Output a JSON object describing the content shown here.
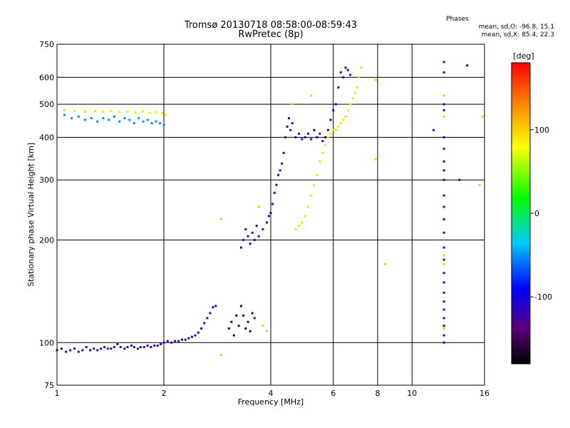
{
  "chart_data": {
    "type": "scatter",
    "title": "Tromsø 20130718 08:58:00-08:59:43",
    "subtitle": "RwPretec (8p)",
    "xlabel": "Frequency [MHz]",
    "ylabel": "Stationary phase Virtual Height [km]",
    "xscale": "log",
    "yscale": "log",
    "xlim": [
      1,
      16
    ],
    "ylim": [
      75,
      750
    ],
    "x_ticks": [
      1,
      2,
      4,
      6,
      8,
      10,
      16
    ],
    "y_ticks": [
      75,
      100,
      200,
      300,
      400,
      500,
      600,
      750
    ],
    "grid": true,
    "phases_title": "Phases",
    "stats": {
      "o": "mean, sd,O: -96.8, 15.1",
      "x": "mean, sd,X:  85.4, 22.3"
    },
    "colorbar": {
      "label": "[deg]",
      "range": [
        -180,
        180
      ],
      "ticks": [
        100,
        0,
        -100
      ],
      "colors": [
        "#000000",
        "#5a0080",
        "#0000ff",
        "#00c8ff",
        "#00ff00",
        "#ffff00",
        "#ff8800",
        "#ff0000"
      ]
    },
    "series": [
      {
        "color_phase": -110,
        "points": [
          [
            1.0,
            95
          ],
          [
            1.03,
            96
          ],
          [
            1.06,
            94
          ],
          [
            1.09,
            95
          ],
          [
            1.12,
            96
          ],
          [
            1.15,
            94
          ],
          [
            1.18,
            95
          ],
          [
            1.21,
            97
          ],
          [
            1.24,
            95
          ],
          [
            1.27,
            96
          ],
          [
            1.3,
            95
          ],
          [
            1.33,
            96
          ],
          [
            1.36,
            97
          ],
          [
            1.39,
            96
          ],
          [
            1.42,
            96
          ],
          [
            1.45,
            97
          ],
          [
            1.48,
            99
          ],
          [
            1.51,
            97
          ],
          [
            1.55,
            96
          ],
          [
            1.58,
            97
          ],
          [
            1.62,
            98
          ],
          [
            1.65,
            97
          ],
          [
            1.69,
            96
          ],
          [
            1.72,
            97
          ],
          [
            1.76,
            97
          ],
          [
            1.8,
            98
          ],
          [
            1.84,
            97
          ],
          [
            1.88,
            98
          ],
          [
            1.92,
            98
          ],
          [
            1.96,
            99
          ],
          [
            2.0,
            100
          ],
          [
            2.05,
            101
          ],
          [
            2.1,
            100
          ],
          [
            2.15,
            101
          ],
          [
            2.2,
            101
          ],
          [
            2.25,
            102
          ],
          [
            2.3,
            102
          ],
          [
            2.35,
            103
          ],
          [
            2.4,
            104
          ],
          [
            2.45,
            105
          ],
          [
            2.5,
            107
          ],
          [
            2.55,
            110
          ],
          [
            2.6,
            114
          ],
          [
            2.65,
            118
          ],
          [
            2.7,
            122
          ],
          [
            2.75,
            127
          ],
          [
            2.8,
            128
          ]
        ]
      },
      {
        "color_phase": -110,
        "points": [
          [
            3.3,
            190
          ],
          [
            3.35,
            200
          ],
          [
            3.4,
            215
          ],
          [
            3.45,
            205
          ],
          [
            3.5,
            195
          ],
          [
            3.55,
            210
          ],
          [
            3.6,
            200
          ],
          [
            3.65,
            220
          ],
          [
            3.7,
            205
          ],
          [
            3.8,
            215
          ],
          [
            3.9,
            225
          ],
          [
            3.95,
            235
          ],
          [
            4.0,
            240
          ],
          [
            4.05,
            255
          ],
          [
            4.1,
            275
          ],
          [
            4.15,
            290
          ],
          [
            4.2,
            310
          ],
          [
            4.25,
            320
          ],
          [
            4.3,
            335
          ],
          [
            4.35,
            360
          ],
          [
            4.4,
            400
          ],
          [
            4.45,
            430
          ],
          [
            4.5,
            455
          ],
          [
            4.55,
            420
          ],
          [
            4.6,
            440
          ],
          [
            4.7,
            400
          ],
          [
            4.8,
            410
          ],
          [
            4.9,
            395
          ],
          [
            5.0,
            400
          ],
          [
            5.1,
            410
          ],
          [
            5.2,
            395
          ],
          [
            5.3,
            420
          ],
          [
            5.4,
            400
          ],
          [
            5.5,
            410
          ],
          [
            5.6,
            390
          ],
          [
            5.7,
            400
          ],
          [
            5.8,
            420
          ],
          [
            5.9,
            450
          ],
          [
            6.0,
            480
          ],
          [
            6.1,
            500
          ],
          [
            6.2,
            560
          ],
          [
            6.3,
            620
          ],
          [
            6.4,
            600
          ],
          [
            6.5,
            640
          ],
          [
            6.6,
            630
          ],
          [
            6.7,
            610
          ]
        ]
      },
      {
        "color_phase": -40,
        "points": [
          [
            1.05,
            465
          ],
          [
            1.1,
            455
          ],
          [
            1.15,
            460
          ],
          [
            1.2,
            450
          ],
          [
            1.25,
            455
          ],
          [
            1.3,
            445
          ],
          [
            1.35,
            455
          ],
          [
            1.4,
            450
          ],
          [
            1.45,
            460
          ],
          [
            1.5,
            445
          ],
          [
            1.55,
            455
          ],
          [
            1.6,
            450
          ],
          [
            1.65,
            440
          ],
          [
            1.7,
            455
          ],
          [
            1.75,
            445
          ],
          [
            1.8,
            450
          ],
          [
            1.85,
            440
          ],
          [
            1.9,
            445
          ],
          [
            1.95,
            440
          ],
          [
            2.0,
            435
          ]
        ]
      },
      {
        "color_phase": 90,
        "points": [
          [
            1.05,
            480
          ],
          [
            1.12,
            478
          ],
          [
            1.2,
            475
          ],
          [
            1.28,
            478
          ],
          [
            1.35,
            475
          ],
          [
            1.42,
            478
          ],
          [
            1.5,
            474
          ],
          [
            1.58,
            476
          ],
          [
            1.66,
            473
          ],
          [
            1.74,
            476
          ],
          [
            1.82,
            472
          ],
          [
            1.9,
            474
          ],
          [
            1.98,
            470
          ],
          [
            2.02,
            465
          ],
          [
            4.7,
            215
          ],
          [
            4.8,
            220
          ],
          [
            4.9,
            225
          ],
          [
            5.0,
            235
          ],
          [
            5.1,
            250
          ],
          [
            5.2,
            270
          ],
          [
            5.3,
            290
          ],
          [
            5.4,
            310
          ],
          [
            5.5,
            340
          ],
          [
            5.6,
            360
          ],
          [
            5.7,
            380
          ],
          [
            5.8,
            400
          ],
          [
            5.9,
            410
          ],
          [
            6.0,
            420
          ],
          [
            6.1,
            420
          ],
          [
            6.2,
            430
          ],
          [
            6.3,
            440
          ],
          [
            6.4,
            450
          ],
          [
            6.5,
            460
          ],
          [
            6.6,
            480
          ],
          [
            6.7,
            500
          ],
          [
            6.8,
            520
          ],
          [
            6.9,
            540
          ],
          [
            7.0,
            560
          ],
          [
            7.1,
            600
          ],
          [
            7.2,
            640
          ]
        ]
      },
      {
        "color_phase": -150,
        "points": [
          [
            3.05,
            110
          ],
          [
            3.1,
            115
          ],
          [
            3.15,
            105
          ],
          [
            3.2,
            120
          ],
          [
            3.25,
            112
          ],
          [
            3.3,
            128
          ],
          [
            3.35,
            120
          ],
          [
            3.4,
            110
          ],
          [
            3.45,
            115
          ],
          [
            3.5,
            108
          ],
          [
            3.55,
            122
          ],
          [
            3.6,
            118
          ]
        ]
      },
      {
        "color_phase": -110,
        "points": [
          [
            12.3,
            665
          ],
          [
            12.3,
            620
          ],
          [
            12.3,
            500
          ],
          [
            12.3,
            480
          ],
          [
            12.3,
            400
          ],
          [
            12.3,
            370
          ],
          [
            12.3,
            340
          ],
          [
            12.3,
            320
          ],
          [
            12.3,
            300
          ],
          [
            12.3,
            270
          ],
          [
            12.3,
            250
          ],
          [
            12.3,
            230
          ],
          [
            12.3,
            210
          ],
          [
            12.3,
            190
          ],
          [
            12.3,
            175
          ],
          [
            12.3,
            160
          ],
          [
            12.3,
            150
          ],
          [
            12.3,
            140
          ],
          [
            12.3,
            132
          ],
          [
            12.3,
            125
          ],
          [
            12.3,
            118
          ],
          [
            12.3,
            112
          ],
          [
            12.3,
            105
          ],
          [
            12.3,
            100
          ],
          [
            14.3,
            650
          ],
          [
            13.6,
            300
          ],
          [
            11.5,
            420
          ]
        ]
      },
      {
        "color_phase": 100,
        "points": [
          [
            12.3,
            530
          ],
          [
            12.3,
            460
          ],
          [
            12.3,
            180
          ],
          [
            12.3,
            170
          ],
          [
            12.3,
            110
          ],
          [
            7.9,
            590
          ],
          [
            7.9,
            345
          ],
          [
            8.4,
            170
          ],
          [
            4.6,
            500
          ],
          [
            5.2,
            530
          ],
          [
            2.9,
            230
          ],
          [
            2.9,
            92
          ],
          [
            3.7,
            250
          ],
          [
            3.8,
            112
          ],
          [
            3.9,
            108
          ],
          [
            15.8,
            460
          ],
          [
            15.5,
            290
          ]
        ]
      }
    ]
  }
}
